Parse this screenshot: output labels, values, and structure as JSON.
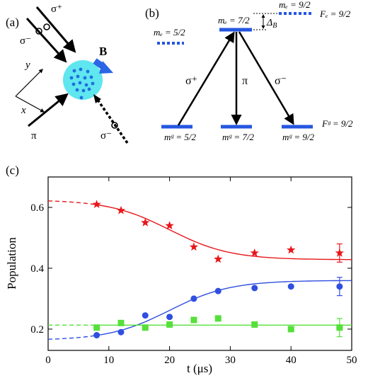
{
  "panel_a": {
    "label": "(a)",
    "field_label": "B",
    "beams": {
      "sigma_plus": "σ⁺",
      "sigma_minus_top": "σ⁻",
      "sigma_minus_right": "σ⁻",
      "pi": "π"
    },
    "axes": {
      "x": "x",
      "y": "y"
    },
    "colors": {
      "cloud": "#5fe6ef",
      "atoms": "#1f6fe0",
      "field_arrow": "#2a66e6"
    }
  },
  "panel_b": {
    "label": "(b)",
    "excited_levels": {
      "left": "mₑ = 5/2",
      "center": "mₑ = 7/2",
      "right": "mₑ = 9/2"
    },
    "ground_levels": {
      "left": "mᵍ = 5/2",
      "center": "mᵍ = 7/2",
      "right": "mᵍ = 9/2"
    },
    "F_e": "Fₑ = 9/2",
    "F_g": "Fᵍ = 9/2",
    "transitions": {
      "left": "σ⁺",
      "center": "π",
      "right": "σ⁻"
    },
    "delta": "Δ",
    "delta_sub": "B",
    "colors": {
      "level": "#2456e0"
    }
  },
  "panel_c": {
    "label": "(c)"
  },
  "chart_data": {
    "type": "scatter",
    "xlabel": "t (μs)",
    "ylabel": "Population",
    "xlim": [
      0,
      50
    ],
    "ylim": [
      0.13,
      0.7
    ],
    "xticks": [
      0,
      10,
      20,
      30,
      40,
      50
    ],
    "yticks": [
      0.2,
      0.4,
      0.6
    ],
    "grid": false,
    "series": [
      {
        "marker": "star",
        "color": "#e8171a",
        "points": [
          [
            8,
            0.61
          ],
          [
            12,
            0.59
          ],
          [
            16,
            0.55
          ],
          [
            20,
            0.54
          ],
          [
            24,
            0.47
          ],
          [
            28,
            0.43
          ],
          [
            34,
            0.45
          ],
          [
            40,
            0.46
          ],
          [
            48,
            0.45
          ]
        ],
        "error_bar": {
          "x": 48,
          "y": 0.45,
          "err": 0.03
        },
        "fit": {
          "type": "sigmoid",
          "start": 0.625,
          "end": 0.428,
          "center": 20,
          "width": 5,
          "dashed_until": 8
        }
      },
      {
        "marker": "circle",
        "color": "#2f4fe0",
        "points": [
          [
            8,
            0.18
          ],
          [
            12,
            0.19
          ],
          [
            16,
            0.245
          ],
          [
            20,
            0.24
          ],
          [
            24,
            0.3
          ],
          [
            28,
            0.325
          ],
          [
            34,
            0.335
          ],
          [
            40,
            0.34
          ],
          [
            48,
            0.34
          ]
        ],
        "error_bar": {
          "x": 48,
          "y": 0.34,
          "err": 0.03
        },
        "fit": {
          "type": "sigmoid",
          "start": 0.163,
          "end": 0.36,
          "center": 20,
          "width": 5,
          "dashed_until": 8
        }
      },
      {
        "marker": "square",
        "color": "#55e03a",
        "points": [
          [
            8,
            0.205
          ],
          [
            12,
            0.22
          ],
          [
            16,
            0.205
          ],
          [
            20,
            0.215
          ],
          [
            24,
            0.23
          ],
          [
            28,
            0.235
          ],
          [
            34,
            0.215
          ],
          [
            40,
            0.2
          ],
          [
            48,
            0.205
          ]
        ],
        "error_bar": {
          "x": 48,
          "y": 0.205,
          "err": 0.03
        },
        "fit": {
          "type": "constant",
          "start": 0.213,
          "end": 0.213,
          "center": 20,
          "width": 5,
          "dashed_until": 8
        }
      }
    ]
  }
}
